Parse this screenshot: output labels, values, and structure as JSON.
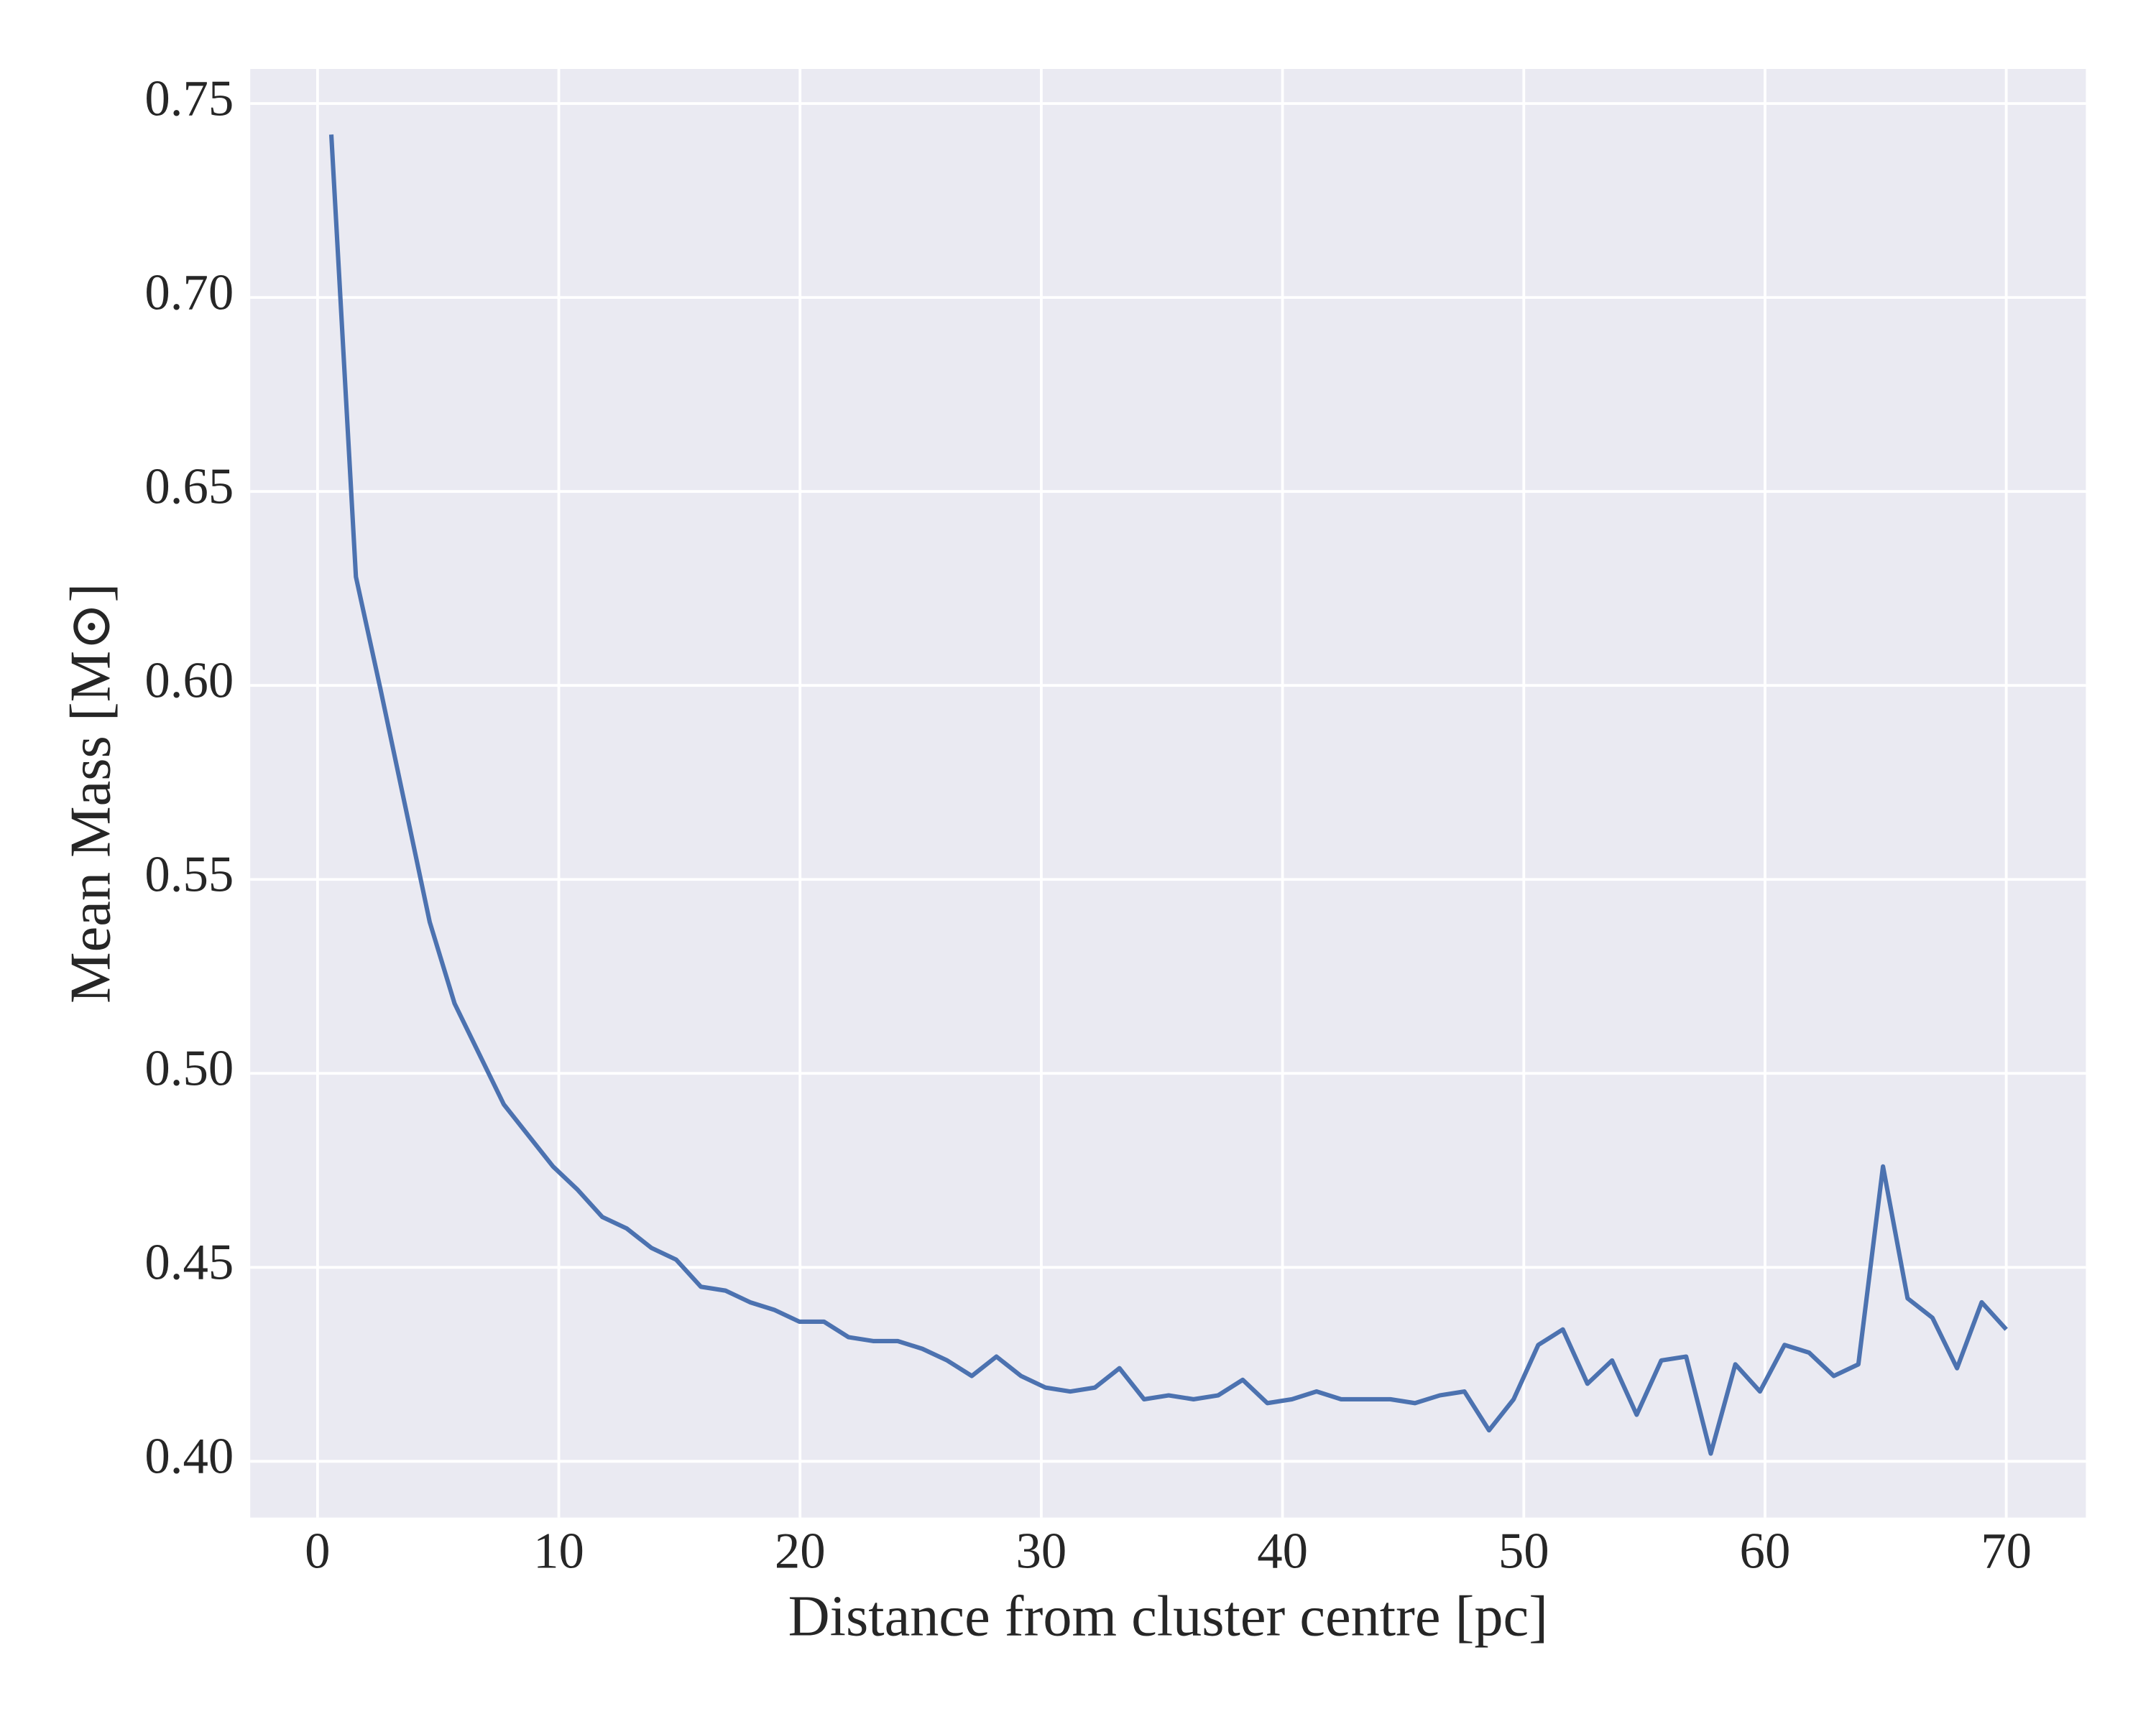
{
  "chart_data": {
    "type": "line",
    "xlabel": "Distance from cluster centre [pc]",
    "ylabel": "Mean Mass [M⊙]",
    "x": [
      0.57,
      1.59,
      2.61,
      3.63,
      4.65,
      5.68,
      6.7,
      7.72,
      8.74,
      9.76,
      10.78,
      11.8,
      12.82,
      13.84,
      14.86,
      15.89,
      16.91,
      17.93,
      18.95,
      19.97,
      20.99,
      22.01,
      23.03,
      24.05,
      25.07,
      26.1,
      27.12,
      28.14,
      29.16,
      30.18,
      31.2,
      32.22,
      33.24,
      34.26,
      35.28,
      36.31,
      37.33,
      38.35,
      39.37,
      40.39,
      41.41,
      42.43,
      43.45,
      44.47,
      45.49,
      46.52,
      47.54,
      48.56,
      49.58,
      50.6,
      51.62,
      52.64,
      53.66,
      54.68,
      55.7,
      56.73,
      57.75,
      58.77,
      59.79,
      60.81,
      61.83,
      62.85,
      63.87,
      64.89,
      65.91,
      66.94,
      67.96,
      68.98,
      70.0
    ],
    "values": [
      0.742,
      0.628,
      0.599,
      0.569,
      0.539,
      0.518,
      0.505,
      0.492,
      0.484,
      0.476,
      0.47,
      0.463,
      0.46,
      0.455,
      0.452,
      0.445,
      0.444,
      0.441,
      0.439,
      0.436,
      0.436,
      0.432,
      0.431,
      0.431,
      0.429,
      0.426,
      0.422,
      0.427,
      0.422,
      0.419,
      0.418,
      0.419,
      0.424,
      0.416,
      0.417,
      0.416,
      0.417,
      0.421,
      0.415,
      0.416,
      0.418,
      0.416,
      0.416,
      0.416,
      0.415,
      0.417,
      0.418,
      0.408,
      0.416,
      0.43,
      0.434,
      0.42,
      0.426,
      0.412,
      0.426,
      0.427,
      0.402,
      0.425,
      0.418,
      0.43,
      0.428,
      0.422,
      0.425,
      0.476,
      0.442,
      0.437,
      0.424,
      0.441,
      0.434
    ],
    "color": "#4c72b0",
    "xlim": [
      -2.79,
      73.3
    ],
    "ylim": [
      0.3855,
      0.7589
    ],
    "xticks": [
      0,
      10,
      20,
      30,
      40,
      50,
      60,
      70
    ],
    "yticks": [
      {
        "value": 0.4,
        "label": "0.40"
      },
      0.45,
      {
        "value": 0.5,
        "label": "0.50"
      },
      0.55,
      {
        "value": 0.6,
        "label": "0.60"
      },
      0.65,
      {
        "value": 0.7,
        "label": "0.70"
      },
      0.75
    ],
    "grid": true
  }
}
